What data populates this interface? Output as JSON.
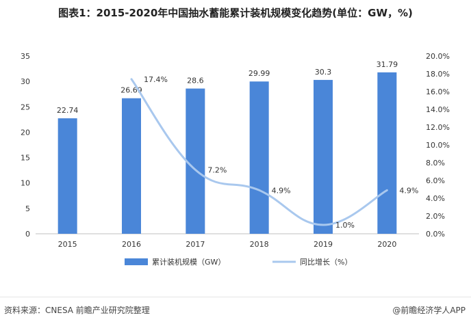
{
  "title": "图表1：2015-2020年中国抽水蓄能累计装机规模变化趋势(单位：GW，%)",
  "source": "资料来源：CNESA 前瞻产业研究院整理",
  "credit": "@前瞻经济学人APP",
  "colors": {
    "bar": "#4a86d8",
    "line": "#a9c8ee",
    "axis": "#bfbfbf",
    "text": "#333333"
  },
  "chart_data": {
    "type": "bar",
    "categories": [
      "2015",
      "2016",
      "2017",
      "2018",
      "2019",
      "2020"
    ],
    "series": [
      {
        "name": "累计装机规模（GW）",
        "type": "bar",
        "axis": "left",
        "values": [
          22.74,
          26.69,
          28.6,
          29.99,
          30.3,
          31.79
        ],
        "labels": [
          "22.74",
          "26.69",
          "28.6",
          "29.99",
          "30.3",
          "31.79"
        ]
      },
      {
        "name": "同比增长（%）",
        "type": "line",
        "axis": "right",
        "values": [
          null,
          17.4,
          7.2,
          4.9,
          1.0,
          4.9
        ],
        "labels": [
          "",
          "17.4%",
          "7.2%",
          "4.9%",
          "1.0%",
          "4.9%"
        ]
      }
    ],
    "y_left": {
      "min": 0,
      "max": 35,
      "ticks": [
        "0",
        "5",
        "10",
        "15",
        "20",
        "25",
        "30",
        "35"
      ]
    },
    "y_right": {
      "min": 0,
      "max": 20,
      "ticks": [
        "0.0%",
        "2.0%",
        "4.0%",
        "6.0%",
        "8.0%",
        "10.0%",
        "12.0%",
        "14.0%",
        "16.0%",
        "18.0%",
        "20.0%"
      ]
    },
    "legend_position": "bottom",
    "grid": false
  }
}
